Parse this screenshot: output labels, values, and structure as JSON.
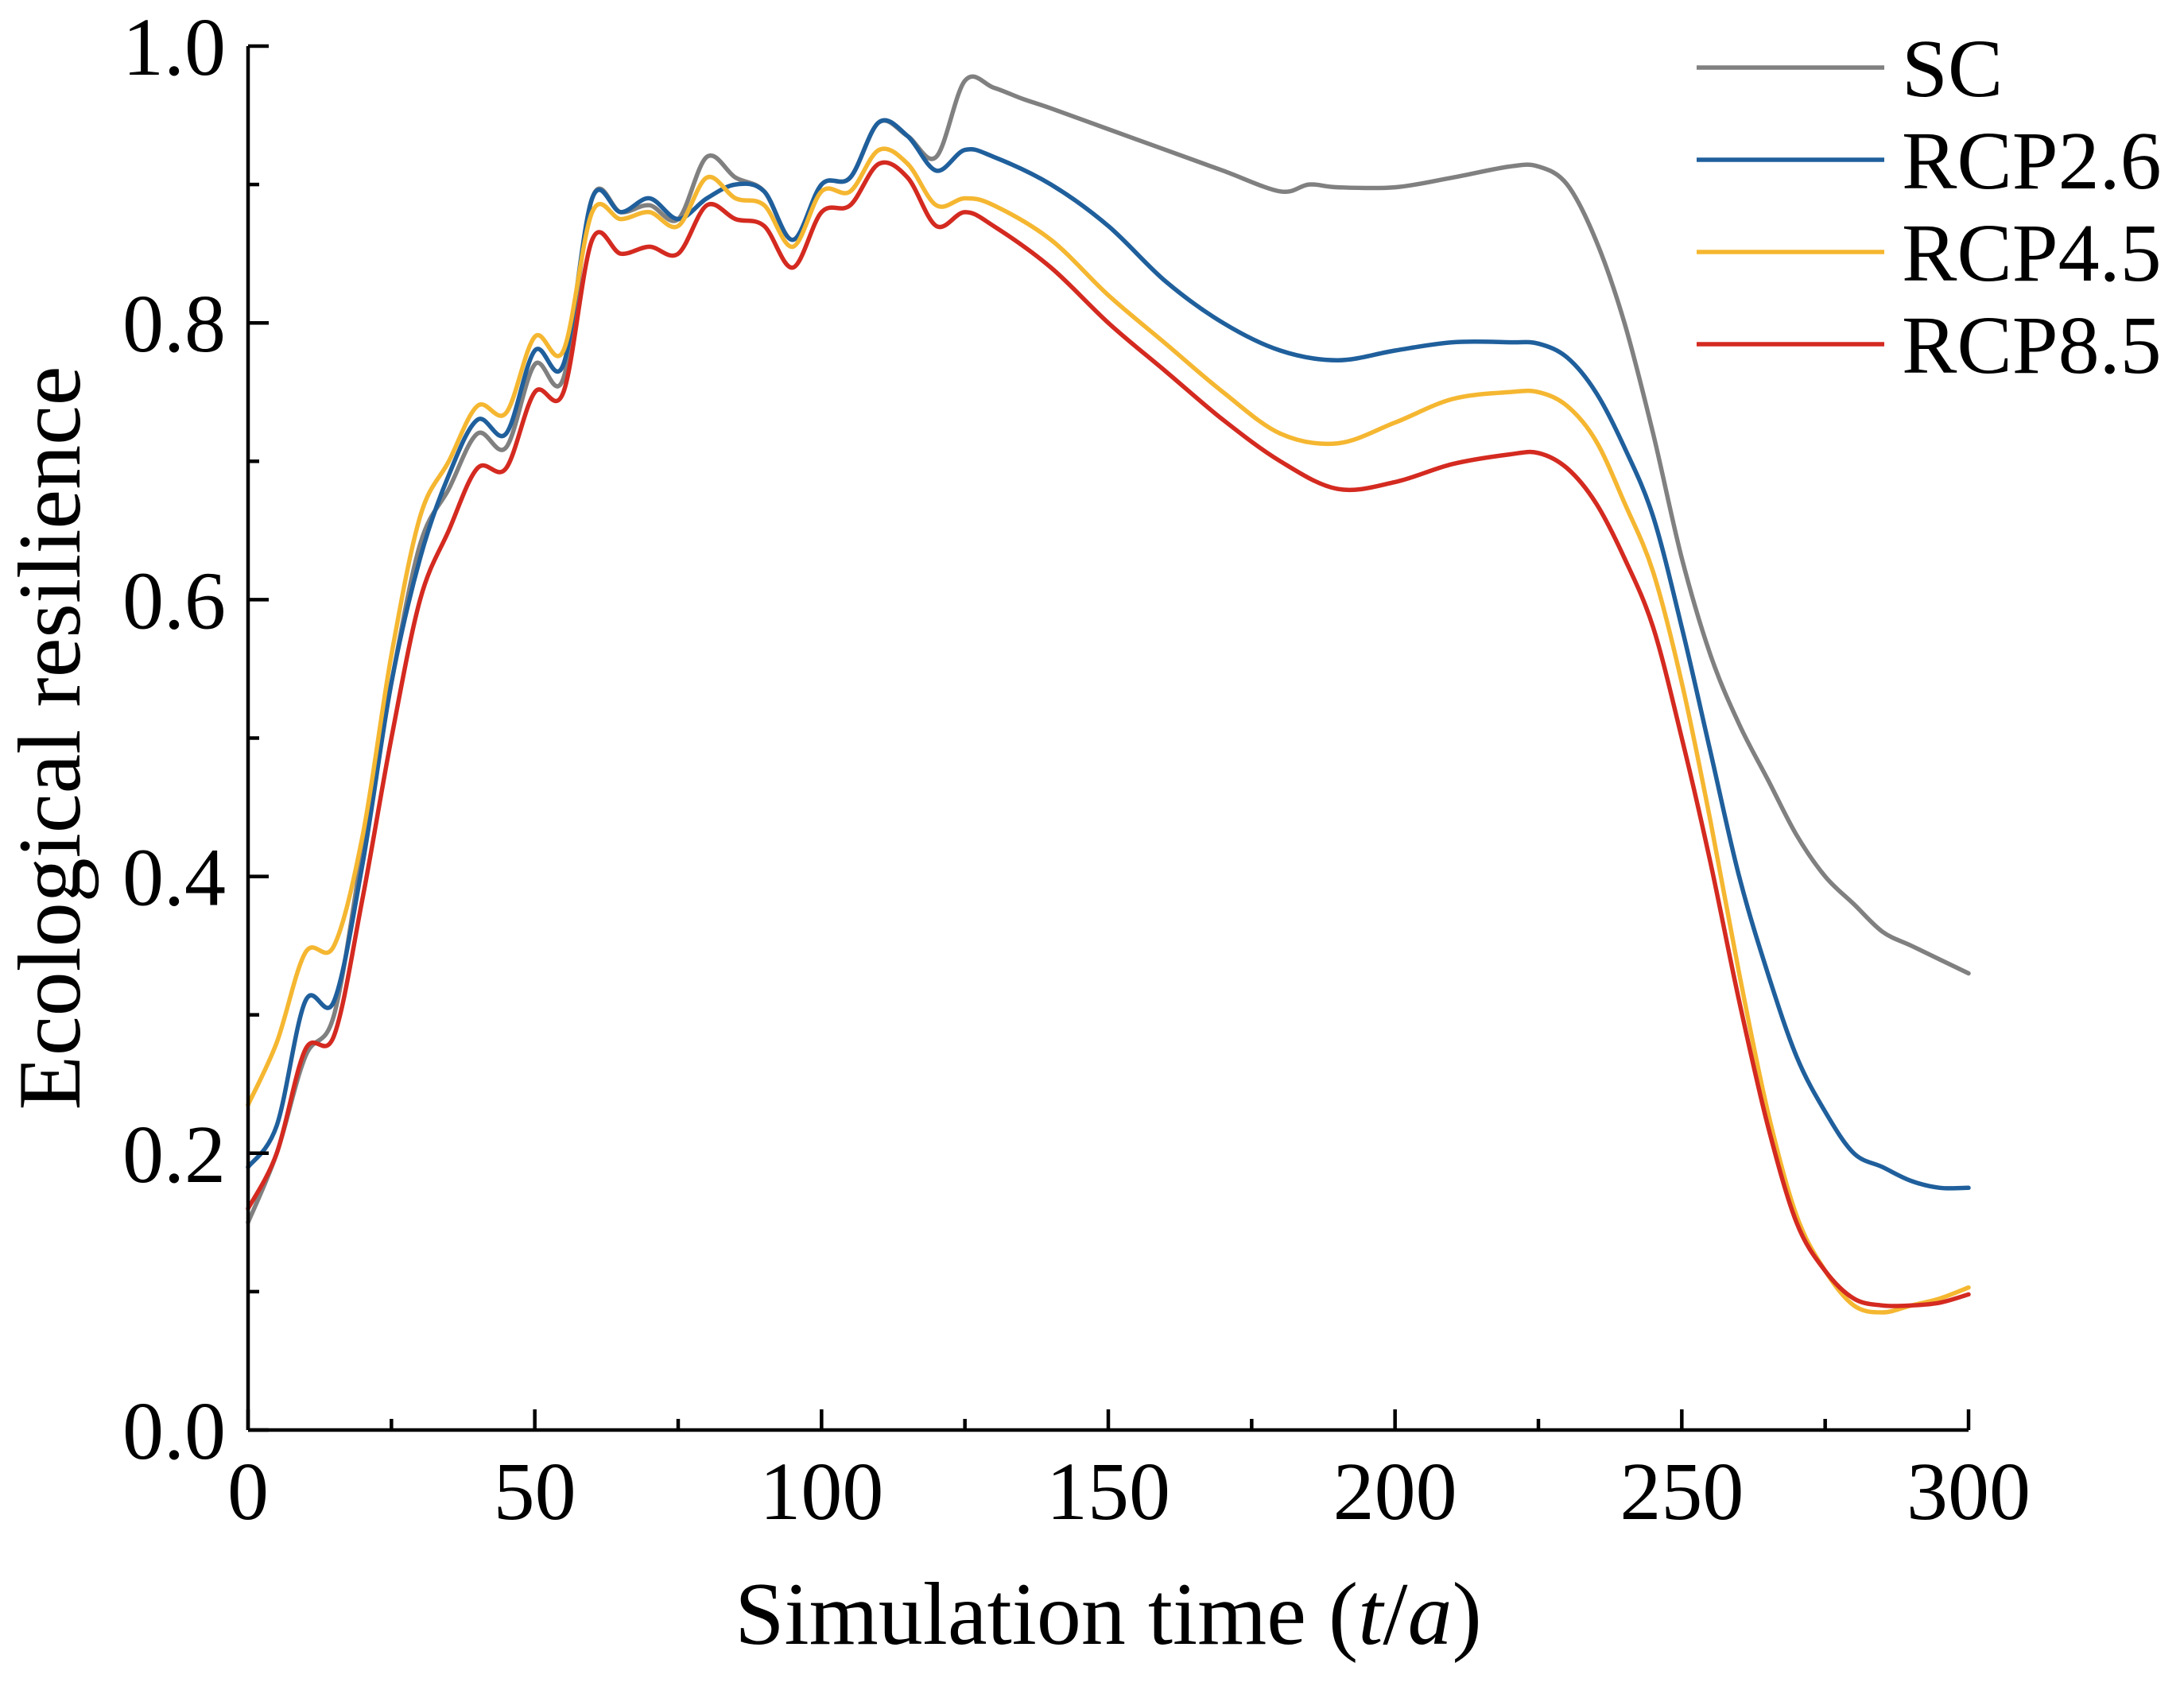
{
  "chart_data": {
    "type": "line",
    "title": "",
    "xlabel": "Simulation time (t/a)",
    "xlabel_parts": {
      "prefix": "Simulation time (",
      "t": "t",
      "slash": "/",
      "a": "a",
      "suffix": ")"
    },
    "ylabel": "Ecological resilience",
    "xlim": [
      0,
      300
    ],
    "ylim": [
      0,
      1.0
    ],
    "x_ticks": [
      0,
      50,
      100,
      150,
      200,
      250,
      300
    ],
    "x_tick_labels": [
      "0",
      "50",
      "100",
      "150",
      "200",
      "250",
      "300"
    ],
    "x_minor_ticks": [
      25,
      75,
      125,
      175,
      225,
      275
    ],
    "y_ticks": [
      0,
      0.2,
      0.4,
      0.6,
      0.8,
      1.0
    ],
    "y_tick_labels": [
      "0.0",
      "0.2",
      "0.4",
      "0.6",
      "0.8",
      "1.0"
    ],
    "y_minor_ticks": [
      0.1,
      0.3,
      0.5,
      0.7,
      0.9
    ],
    "grid": false,
    "legend_position": "top-right",
    "series": [
      {
        "name": "SC",
        "color": "#808080",
        "points": [
          [
            0,
            0.15
          ],
          [
            5,
            0.2
          ],
          [
            10,
            0.27
          ],
          [
            15,
            0.3
          ],
          [
            20,
            0.42
          ],
          [
            25,
            0.54
          ],
          [
            30,
            0.64
          ],
          [
            35,
            0.68
          ],
          [
            40,
            0.72
          ],
          [
            45,
            0.71
          ],
          [
            50,
            0.77
          ],
          [
            55,
            0.76
          ],
          [
            60,
            0.89
          ],
          [
            65,
            0.88
          ],
          [
            70,
            0.885
          ],
          [
            75,
            0.875
          ],
          [
            80,
            0.92
          ],
          [
            85,
            0.905
          ],
          [
            90,
            0.895
          ],
          [
            95,
            0.86
          ],
          [
            100,
            0.9
          ],
          [
            105,
            0.905
          ],
          [
            110,
            0.945
          ],
          [
            115,
            0.935
          ],
          [
            120,
            0.92
          ],
          [
            125,
            0.975
          ],
          [
            130,
            0.97
          ],
          [
            135,
            0.962
          ],
          [
            140,
            0.955
          ],
          [
            150,
            0.94
          ],
          [
            160,
            0.925
          ],
          [
            170,
            0.91
          ],
          [
            180,
            0.895
          ],
          [
            185,
            0.9
          ],
          [
            190,
            0.898
          ],
          [
            200,
            0.898
          ],
          [
            210,
            0.905
          ],
          [
            220,
            0.913
          ],
          [
            225,
            0.913
          ],
          [
            230,
            0.9
          ],
          [
            235,
            0.86
          ],
          [
            240,
            0.8
          ],
          [
            245,
            0.72
          ],
          [
            250,
            0.63
          ],
          [
            255,
            0.56
          ],
          [
            260,
            0.51
          ],
          [
            265,
            0.47
          ],
          [
            270,
            0.43
          ],
          [
            275,
            0.4
          ],
          [
            280,
            0.38
          ],
          [
            285,
            0.36
          ],
          [
            290,
            0.35
          ],
          [
            295,
            0.34
          ],
          [
            300,
            0.33
          ]
        ]
      },
      {
        "name": "RCP2.6",
        "color": "#1f5f9c",
        "points": [
          [
            0,
            0.19
          ],
          [
            5,
            0.22
          ],
          [
            10,
            0.31
          ],
          [
            15,
            0.31
          ],
          [
            20,
            0.41
          ],
          [
            25,
            0.54
          ],
          [
            30,
            0.63
          ],
          [
            35,
            0.69
          ],
          [
            40,
            0.73
          ],
          [
            45,
            0.72
          ],
          [
            50,
            0.78
          ],
          [
            55,
            0.77
          ],
          [
            60,
            0.89
          ],
          [
            65,
            0.88
          ],
          [
            70,
            0.89
          ],
          [
            75,
            0.875
          ],
          [
            80,
            0.89
          ],
          [
            85,
            0.9
          ],
          [
            90,
            0.895
          ],
          [
            95,
            0.86
          ],
          [
            100,
            0.9
          ],
          [
            105,
            0.905
          ],
          [
            110,
            0.945
          ],
          [
            115,
            0.935
          ],
          [
            120,
            0.91
          ],
          [
            125,
            0.925
          ],
          [
            130,
            0.92
          ],
          [
            140,
            0.9
          ],
          [
            150,
            0.87
          ],
          [
            160,
            0.83
          ],
          [
            170,
            0.8
          ],
          [
            180,
            0.78
          ],
          [
            190,
            0.773
          ],
          [
            200,
            0.78
          ],
          [
            210,
            0.786
          ],
          [
            220,
            0.786
          ],
          [
            225,
            0.785
          ],
          [
            230,
            0.775
          ],
          [
            235,
            0.75
          ],
          [
            240,
            0.71
          ],
          [
            245,
            0.66
          ],
          [
            250,
            0.58
          ],
          [
            255,
            0.49
          ],
          [
            260,
            0.4
          ],
          [
            265,
            0.33
          ],
          [
            270,
            0.27
          ],
          [
            275,
            0.23
          ],
          [
            280,
            0.2
          ],
          [
            285,
            0.19
          ],
          [
            290,
            0.18
          ],
          [
            295,
            0.175
          ],
          [
            300,
            0.175
          ]
        ]
      },
      {
        "name": "RCP4.5",
        "color": "#f5b731",
        "points": [
          [
            0,
            0.235
          ],
          [
            5,
            0.28
          ],
          [
            10,
            0.345
          ],
          [
            15,
            0.35
          ],
          [
            20,
            0.43
          ],
          [
            25,
            0.56
          ],
          [
            30,
            0.66
          ],
          [
            35,
            0.7
          ],
          [
            40,
            0.74
          ],
          [
            45,
            0.735
          ],
          [
            50,
            0.79
          ],
          [
            55,
            0.78
          ],
          [
            60,
            0.88
          ],
          [
            65,
            0.875
          ],
          [
            70,
            0.88
          ],
          [
            75,
            0.87
          ],
          [
            80,
            0.905
          ],
          [
            85,
            0.89
          ],
          [
            90,
            0.885
          ],
          [
            95,
            0.855
          ],
          [
            100,
            0.895
          ],
          [
            105,
            0.895
          ],
          [
            110,
            0.925
          ],
          [
            115,
            0.915
          ],
          [
            120,
            0.885
          ],
          [
            125,
            0.89
          ],
          [
            130,
            0.885
          ],
          [
            140,
            0.86
          ],
          [
            150,
            0.82
          ],
          [
            160,
            0.785
          ],
          [
            170,
            0.75
          ],
          [
            180,
            0.72
          ],
          [
            190,
            0.713
          ],
          [
            200,
            0.728
          ],
          [
            210,
            0.745
          ],
          [
            220,
            0.75
          ],
          [
            225,
            0.75
          ],
          [
            230,
            0.74
          ],
          [
            235,
            0.715
          ],
          [
            240,
            0.67
          ],
          [
            245,
            0.62
          ],
          [
            250,
            0.54
          ],
          [
            255,
            0.44
          ],
          [
            260,
            0.33
          ],
          [
            265,
            0.23
          ],
          [
            270,
            0.155
          ],
          [
            275,
            0.115
          ],
          [
            280,
            0.09
          ],
          [
            285,
            0.085
          ],
          [
            290,
            0.09
          ],
          [
            295,
            0.095
          ],
          [
            300,
            0.103
          ]
        ]
      },
      {
        "name": "RCP8.5",
        "color": "#d42a20",
        "points": [
          [
            0,
            0.16
          ],
          [
            5,
            0.2
          ],
          [
            10,
            0.275
          ],
          [
            15,
            0.285
          ],
          [
            20,
            0.385
          ],
          [
            25,
            0.5
          ],
          [
            30,
            0.6
          ],
          [
            35,
            0.65
          ],
          [
            40,
            0.695
          ],
          [
            45,
            0.695
          ],
          [
            50,
            0.75
          ],
          [
            55,
            0.75
          ],
          [
            60,
            0.86
          ],
          [
            65,
            0.85
          ],
          [
            70,
            0.855
          ],
          [
            75,
            0.85
          ],
          [
            80,
            0.885
          ],
          [
            85,
            0.875
          ],
          [
            90,
            0.87
          ],
          [
            95,
            0.84
          ],
          [
            100,
            0.88
          ],
          [
            105,
            0.885
          ],
          [
            110,
            0.915
          ],
          [
            115,
            0.905
          ],
          [
            120,
            0.87
          ],
          [
            125,
            0.88
          ],
          [
            130,
            0.87
          ],
          [
            140,
            0.84
          ],
          [
            150,
            0.8
          ],
          [
            160,
            0.765
          ],
          [
            170,
            0.73
          ],
          [
            180,
            0.7
          ],
          [
            190,
            0.68
          ],
          [
            200,
            0.685
          ],
          [
            210,
            0.698
          ],
          [
            220,
            0.705
          ],
          [
            225,
            0.706
          ],
          [
            230,
            0.695
          ],
          [
            235,
            0.67
          ],
          [
            240,
            0.63
          ],
          [
            245,
            0.58
          ],
          [
            250,
            0.5
          ],
          [
            255,
            0.41
          ],
          [
            260,
            0.31
          ],
          [
            265,
            0.22
          ],
          [
            270,
            0.15
          ],
          [
            275,
            0.115
          ],
          [
            280,
            0.095
          ],
          [
            285,
            0.09
          ],
          [
            290,
            0.09
          ],
          [
            295,
            0.092
          ],
          [
            300,
            0.098
          ]
        ]
      }
    ]
  }
}
